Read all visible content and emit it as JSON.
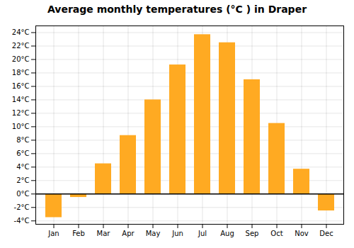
{
  "chart_data": {
    "type": "bar",
    "title": "Average monthly temperatures (°C ) in Draper",
    "categories": [
      "Jan",
      "Feb",
      "Mar",
      "Apr",
      "May",
      "Jun",
      "Jul",
      "Aug",
      "Sep",
      "Oct",
      "Nov",
      "Dec"
    ],
    "values": [
      -3.5,
      -0.5,
      4.5,
      8.7,
      14.0,
      19.2,
      23.7,
      22.5,
      17.0,
      10.5,
      3.7,
      -2.5
    ],
    "color": "#FFAA22",
    "ylim": [
      -4.5,
      25
    ],
    "yticks": [
      {
        "value": -4,
        "label": "-4°C"
      },
      {
        "value": -2,
        "label": "-2°C"
      },
      {
        "value": 0,
        "label": "0°C"
      },
      {
        "value": 2,
        "label": "2°C"
      },
      {
        "value": 4,
        "label": "4°C"
      },
      {
        "value": 6,
        "label": "6°C"
      },
      {
        "value": 8,
        "label": "8°C"
      },
      {
        "value": 10,
        "label": "10°C"
      },
      {
        "value": 12,
        "label": "12°C"
      },
      {
        "value": 14,
        "label": "14°C"
      },
      {
        "value": 16,
        "label": "16°C"
      },
      {
        "value": 18,
        "label": "18°C"
      },
      {
        "value": 20,
        "label": "20°C"
      },
      {
        "value": 22,
        "label": "22°C"
      },
      {
        "value": 24,
        "label": "24°C"
      }
    ],
    "grid": true
  }
}
